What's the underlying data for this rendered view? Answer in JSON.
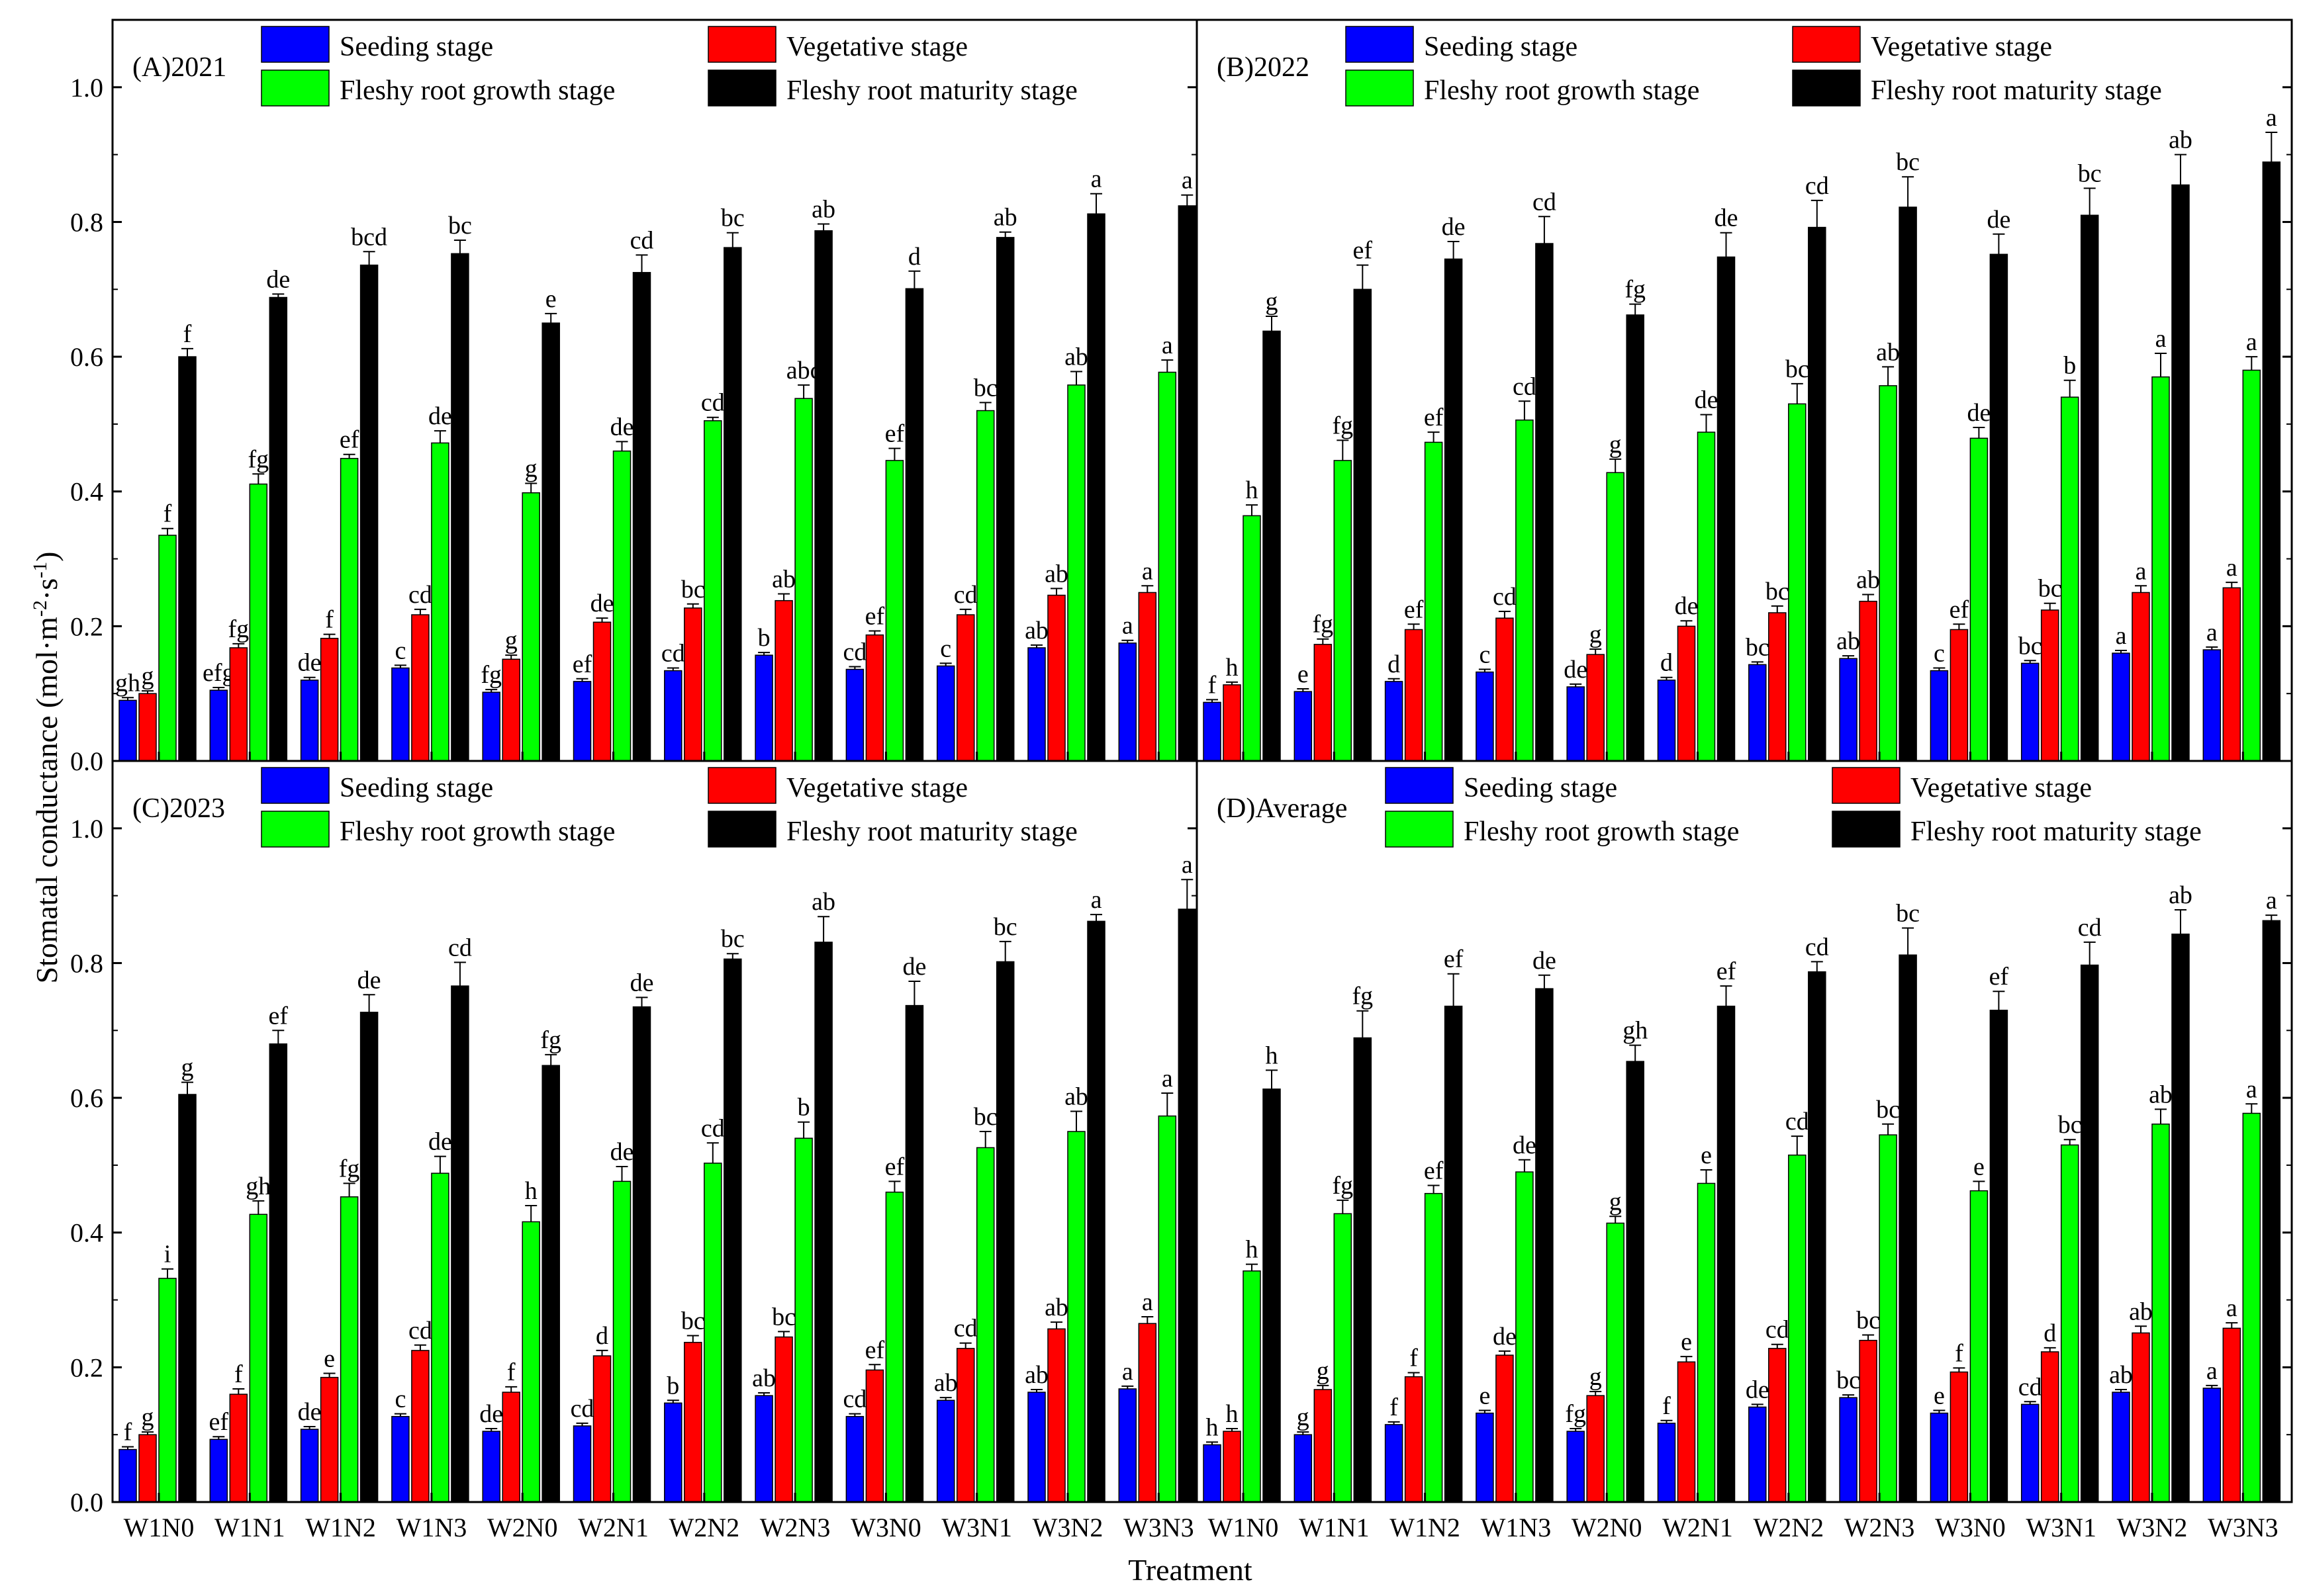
{
  "figure": {
    "y_axis_label": "Stomatal conductance (mol·m⁻²·s⁻¹)",
    "y_label_main": "Stomatal conductance (mol·m",
    "y_label_exp1": "-2",
    "y_label_mid": "·s",
    "y_label_exp2": "-1",
    "y_label_end": ")",
    "x_axis_label": "Treatment"
  },
  "colors": {
    "Seeding stage": "#0000FF",
    "Vegetative stage": "#FF0000",
    "Fleshy root growth stage": "#00FF00",
    "Fleshy root maturity stage": "#000000"
  },
  "chart_data": [
    {
      "type": "bar",
      "title": "(A)2021",
      "ylim": [
        0,
        1.1
      ],
      "yticks": [
        0.0,
        0.2,
        0.4,
        0.6,
        0.8,
        1.0
      ],
      "ytick_labels": [
        "0.0",
        "0.2",
        "0.4",
        "0.6",
        "0.8",
        "1.0"
      ],
      "xlabel": "Treatment",
      "ylabel": "Stomatal conductance (mol·m⁻²·s⁻¹)",
      "categories": [
        "W1N0",
        "W1N1",
        "W1N2",
        "W1N3",
        "W2N0",
        "W2N1",
        "W2N2",
        "W2N3",
        "W3N0",
        "W3N1",
        "W3N2",
        "W3N3"
      ],
      "series": [
        {
          "name": "Seeding stage",
          "values": [
            0.09,
            0.105,
            0.12,
            0.138,
            0.102,
            0.118,
            0.134,
            0.157,
            0.136,
            0.141,
            0.168,
            0.175
          ],
          "errors": [
            0.004,
            0.004,
            0.004,
            0.004,
            0.004,
            0.004,
            0.004,
            0.004,
            0.004,
            0.004,
            0.004,
            0.004
          ],
          "labels": [
            "gh",
            "efg",
            "de",
            "c",
            "fg",
            "ef",
            "cd",
            "b",
            "cd",
            "c",
            "ab",
            "a"
          ]
        },
        {
          "name": "Vegetative stage",
          "values": [
            0.1,
            0.168,
            0.182,
            0.217,
            0.151,
            0.206,
            0.227,
            0.238,
            0.187,
            0.217,
            0.246,
            0.25
          ],
          "errors": [
            0.004,
            0.006,
            0.006,
            0.008,
            0.006,
            0.006,
            0.006,
            0.01,
            0.006,
            0.008,
            0.01,
            0.01
          ],
          "labels": [
            "g",
            "fg",
            "f",
            "cd",
            "g",
            "de",
            "bc",
            "ab",
            "ef",
            "cd",
            "ab",
            "a"
          ]
        },
        {
          "name": "Fleshy root growth stage",
          "values": [
            0.335,
            0.411,
            0.449,
            0.472,
            0.398,
            0.46,
            0.505,
            0.538,
            0.446,
            0.52,
            0.558,
            0.577
          ],
          "errors": [
            0.01,
            0.015,
            0.006,
            0.018,
            0.014,
            0.014,
            0.005,
            0.02,
            0.018,
            0.012,
            0.02,
            0.018
          ],
          "labels": [
            "f",
            "fg",
            "ef",
            "de",
            "g",
            "de",
            "cd",
            "abc",
            "ef",
            "bc",
            "ab",
            "a"
          ]
        },
        {
          "name": "Fleshy root maturity stage",
          "values": [
            0.6,
            0.688,
            0.736,
            0.753,
            0.65,
            0.725,
            0.762,
            0.787,
            0.701,
            0.777,
            0.812,
            0.824
          ],
          "errors": [
            0.012,
            0.005,
            0.02,
            0.02,
            0.014,
            0.026,
            0.022,
            0.01,
            0.026,
            0.008,
            0.03,
            0.016
          ],
          "labels": [
            "f",
            "de",
            "bcd",
            "bc",
            "e",
            "cd",
            "bc",
            "ab",
            "d",
            "ab",
            "a",
            "a"
          ]
        }
      ]
    },
    {
      "type": "bar",
      "title": "(B)2022",
      "ylim": [
        0,
        1.1
      ],
      "xlabel": "Treatment",
      "ylabel": "Stomatal conductance (mol·m⁻²·s⁻¹)",
      "categories": [
        "W1N0",
        "W1N1",
        "W1N2",
        "W1N3",
        "W2N0",
        "W2N1",
        "W2N2",
        "W2N3",
        "W3N0",
        "W3N1",
        "W3N2",
        "W3N3"
      ],
      "series": [
        {
          "name": "Seeding stage",
          "values": [
            0.087,
            0.103,
            0.118,
            0.132,
            0.11,
            0.12,
            0.143,
            0.152,
            0.134,
            0.145,
            0.16,
            0.165
          ],
          "errors": [
            0.004,
            0.004,
            0.004,
            0.004,
            0.004,
            0.004,
            0.004,
            0.004,
            0.004,
            0.004,
            0.004,
            0.004
          ],
          "labels": [
            "f",
            "e",
            "d",
            "c",
            "de",
            "d",
            "bc",
            "ab",
            "c",
            "bc",
            "a",
            "a"
          ]
        },
        {
          "name": "Vegetative stage",
          "values": [
            0.113,
            0.173,
            0.195,
            0.212,
            0.158,
            0.2,
            0.22,
            0.237,
            0.195,
            0.224,
            0.25,
            0.257
          ],
          "errors": [
            0.004,
            0.008,
            0.008,
            0.01,
            0.008,
            0.008,
            0.01,
            0.01,
            0.008,
            0.01,
            0.01,
            0.008
          ],
          "labels": [
            "h",
            "fg",
            "ef",
            "cd",
            "g",
            "de",
            "bc",
            "ab",
            "ef",
            "bc",
            "a",
            "a"
          ]
        },
        {
          "name": "Fleshy root growth stage",
          "values": [
            0.364,
            0.446,
            0.473,
            0.506,
            0.428,
            0.488,
            0.53,
            0.557,
            0.479,
            0.54,
            0.57,
            0.58
          ],
          "errors": [
            0.016,
            0.03,
            0.015,
            0.028,
            0.02,
            0.026,
            0.03,
            0.028,
            0.016,
            0.025,
            0.035,
            0.02
          ],
          "labels": [
            "h",
            "fg",
            "ef",
            "cd",
            "g",
            "de",
            "bc",
            "ab",
            "de",
            "b",
            "a",
            "a"
          ]
        },
        {
          "name": "Fleshy root maturity stage",
          "values": [
            0.638,
            0.7,
            0.745,
            0.768,
            0.662,
            0.748,
            0.792,
            0.822,
            0.752,
            0.81,
            0.855,
            0.889
          ],
          "errors": [
            0.022,
            0.036,
            0.026,
            0.04,
            0.016,
            0.036,
            0.04,
            0.045,
            0.03,
            0.04,
            0.045,
            0.044
          ],
          "labels": [
            "g",
            "ef",
            "de",
            "cd",
            "fg",
            "de",
            "cd",
            "bc",
            "de",
            "bc",
            "ab",
            "a"
          ]
        }
      ]
    },
    {
      "type": "bar",
      "title": "(C)2023",
      "ylim": [
        0,
        1.1
      ],
      "yticks": [
        0.0,
        0.2,
        0.4,
        0.6,
        0.8,
        1.0
      ],
      "ytick_labels": [
        "0.0",
        "0.2",
        "0.4",
        "0.6",
        "0.8",
        "1.0"
      ],
      "xlabel": "Treatment",
      "ylabel": "Stomatal conductance (mol·m⁻²·s⁻¹)",
      "categories": [
        "W1N0",
        "W1N1",
        "W1N2",
        "W1N3",
        "W2N0",
        "W2N1",
        "W2N2",
        "W2N3",
        "W3N0",
        "W3N1",
        "W3N2",
        "W3N3"
      ],
      "series": [
        {
          "name": "Seeding stage",
          "values": [
            0.078,
            0.093,
            0.108,
            0.127,
            0.105,
            0.113,
            0.147,
            0.158,
            0.127,
            0.151,
            0.163,
            0.168
          ],
          "errors": [
            0.004,
            0.004,
            0.004,
            0.004,
            0.004,
            0.004,
            0.004,
            0.004,
            0.004,
            0.004,
            0.004,
            0.004
          ],
          "labels": [
            "f",
            "ef",
            "de",
            "c",
            "de",
            "cd",
            "b",
            "ab",
            "cd",
            "ab",
            "ab",
            "a"
          ]
        },
        {
          "name": "Vegetative stage",
          "values": [
            0.1,
            0.16,
            0.185,
            0.225,
            0.163,
            0.217,
            0.237,
            0.245,
            0.196,
            0.228,
            0.257,
            0.265
          ],
          "errors": [
            0.004,
            0.008,
            0.006,
            0.008,
            0.008,
            0.008,
            0.01,
            0.008,
            0.008,
            0.008,
            0.01,
            0.01
          ],
          "labels": [
            "g",
            "f",
            "e",
            "cd",
            "f",
            "d",
            "bc",
            "bc",
            "ef",
            "cd",
            "ab",
            "a"
          ]
        },
        {
          "name": "Fleshy root growth stage",
          "values": [
            0.332,
            0.427,
            0.453,
            0.488,
            0.416,
            0.476,
            0.503,
            0.54,
            0.46,
            0.526,
            0.55,
            0.573
          ],
          "errors": [
            0.014,
            0.02,
            0.02,
            0.025,
            0.024,
            0.022,
            0.03,
            0.024,
            0.016,
            0.024,
            0.03,
            0.034
          ],
          "labels": [
            "i",
            "gh",
            "fg",
            "de",
            "h",
            "de",
            "cd",
            "b",
            "ef",
            "bc",
            "ab",
            "a"
          ]
        },
        {
          "name": "Fleshy root maturity stage",
          "values": [
            0.605,
            0.68,
            0.727,
            0.766,
            0.648,
            0.735,
            0.806,
            0.831,
            0.737,
            0.802,
            0.862,
            0.88
          ],
          "errors": [
            0.018,
            0.02,
            0.026,
            0.035,
            0.016,
            0.014,
            0.008,
            0.038,
            0.036,
            0.03,
            0.01,
            0.044
          ],
          "labels": [
            "g",
            "ef",
            "de",
            "cd",
            "fg",
            "de",
            "bc",
            "ab",
            "de",
            "bc",
            "a",
            "a"
          ]
        }
      ]
    },
    {
      "type": "bar",
      "title": "(D)Average",
      "ylim": [
        0,
        1.1
      ],
      "xlabel": "Treatment",
      "ylabel": "Stomatal conductance (mol·m⁻²·s⁻¹)",
      "categories": [
        "W1N0",
        "W1N1",
        "W1N2",
        "W1N3",
        "W2N0",
        "W2N1",
        "W2N2",
        "W2N3",
        "W3N0",
        "W3N1",
        "W3N2",
        "W3N3"
      ],
      "series": [
        {
          "name": "Seeding stage",
          "values": [
            0.085,
            0.1,
            0.115,
            0.132,
            0.105,
            0.117,
            0.141,
            0.155,
            0.132,
            0.145,
            0.163,
            0.169
          ],
          "errors": [
            0.004,
            0.004,
            0.004,
            0.004,
            0.004,
            0.004,
            0.004,
            0.004,
            0.004,
            0.004,
            0.004,
            0.004
          ],
          "labels": [
            "h",
            "g",
            "f",
            "e",
            "fg",
            "f",
            "de",
            "bc",
            "e",
            "cd",
            "ab",
            "a"
          ]
        },
        {
          "name": "Vegetative stage",
          "values": [
            0.105,
            0.167,
            0.186,
            0.218,
            0.158,
            0.208,
            0.228,
            0.24,
            0.193,
            0.223,
            0.251,
            0.258
          ],
          "errors": [
            0.004,
            0.006,
            0.006,
            0.006,
            0.006,
            0.008,
            0.006,
            0.008,
            0.006,
            0.006,
            0.01,
            0.008
          ],
          "labels": [
            "h",
            "g",
            "f",
            "de",
            "g",
            "e",
            "cd",
            "bc",
            "f",
            "d",
            "ab",
            "a"
          ]
        },
        {
          "name": "Fleshy root growth stage",
          "values": [
            0.343,
            0.428,
            0.458,
            0.49,
            0.414,
            0.473,
            0.515,
            0.545,
            0.462,
            0.53,
            0.561,
            0.577
          ],
          "errors": [
            0.01,
            0.02,
            0.012,
            0.018,
            0.01,
            0.02,
            0.028,
            0.016,
            0.014,
            0.008,
            0.022,
            0.014
          ],
          "labels": [
            "h",
            "fg",
            "ef",
            "de",
            "g",
            "e",
            "cd",
            "bc",
            "e",
            "bc",
            "ab",
            "a"
          ]
        },
        {
          "name": "Fleshy root maturity stage",
          "values": [
            0.613,
            0.689,
            0.736,
            0.762,
            0.654,
            0.736,
            0.787,
            0.812,
            0.73,
            0.797,
            0.843,
            0.863
          ],
          "errors": [
            0.028,
            0.04,
            0.048,
            0.02,
            0.024,
            0.03,
            0.015,
            0.04,
            0.028,
            0.034,
            0.036,
            0.008
          ],
          "labels": [
            "h",
            "fg",
            "ef",
            "de",
            "gh",
            "ef",
            "cd",
            "bc",
            "ef",
            "cd",
            "ab",
            "a"
          ]
        }
      ]
    }
  ]
}
